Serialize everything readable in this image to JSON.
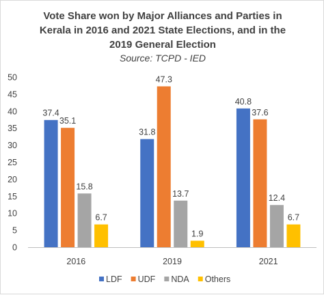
{
  "chart_data": {
    "type": "bar",
    "title_lines": [
      "Vote Share won by Major Alliances and Parties in",
      "Kerala in 2016 and 2021 State Elections, and in the",
      "2019 General Election"
    ],
    "subtitle": "Source: TCPD - IED",
    "categories": [
      "2016",
      "2019",
      "2021"
    ],
    "series": [
      {
        "name": "LDF",
        "color": "#4472C4",
        "values": [
          37.4,
          31.8,
          40.8
        ]
      },
      {
        "name": "UDF",
        "color": "#ED7D31",
        "values": [
          35.1,
          47.3,
          37.6
        ]
      },
      {
        "name": "NDA",
        "color": "#A5A5A5",
        "values": [
          15.8,
          13.7,
          12.4
        ]
      },
      {
        "name": "Others",
        "color": "#FFC000",
        "values": [
          6.7,
          1.9,
          6.7
        ]
      }
    ],
    "ylim": [
      0,
      50
    ],
    "yticks": [
      0,
      5,
      10,
      15,
      20,
      25,
      30,
      35,
      40,
      45,
      50
    ],
    "grid": false,
    "legend_position": "bottom"
  }
}
